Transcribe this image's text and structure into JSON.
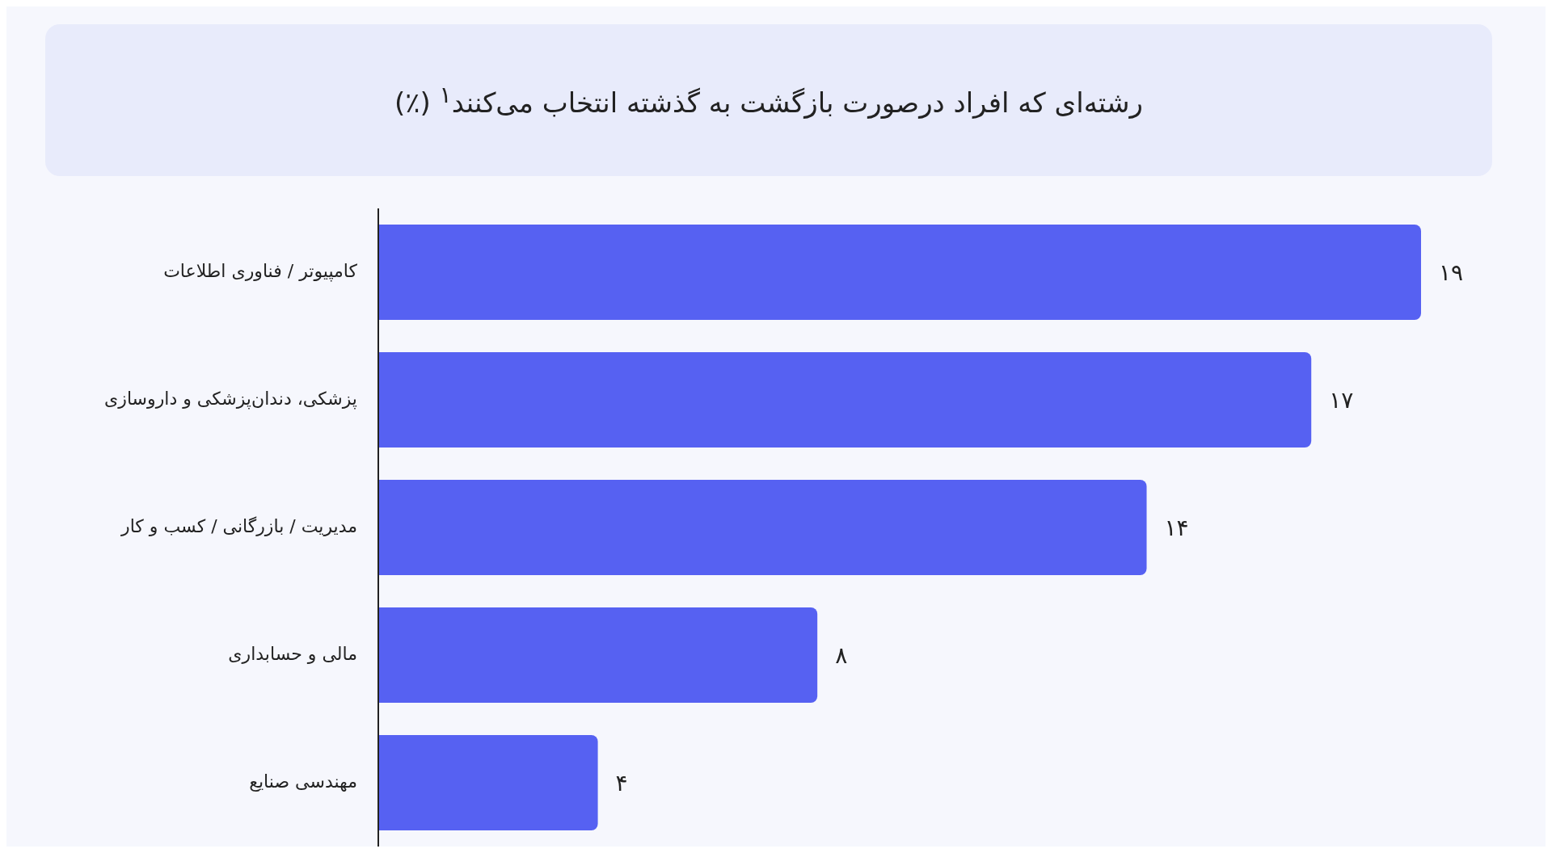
{
  "chart_data": {
    "type": "bar",
    "orientation": "horizontal",
    "title": "رشته‌ای که افراد درصورت بازگشت به گذشته انتخاب می‌کنند$^{۱}$ (٪)",
    "categories": [
      "کامپیوتر / فناوری اطلاعات",
      "پزشکی، دندان‌پزشکی و داروسازی",
      "مدیریت / بازرگانی / کسب و کار",
      "مالی و حسابداری",
      "مهندسی صنایع"
    ],
    "values": [
      19,
      17,
      14,
      8,
      4
    ],
    "value_labels": [
      "۱۹",
      "۱۷",
      "۱۴",
      "۸",
      "۴"
    ],
    "color": "#5661f2"
  }
}
